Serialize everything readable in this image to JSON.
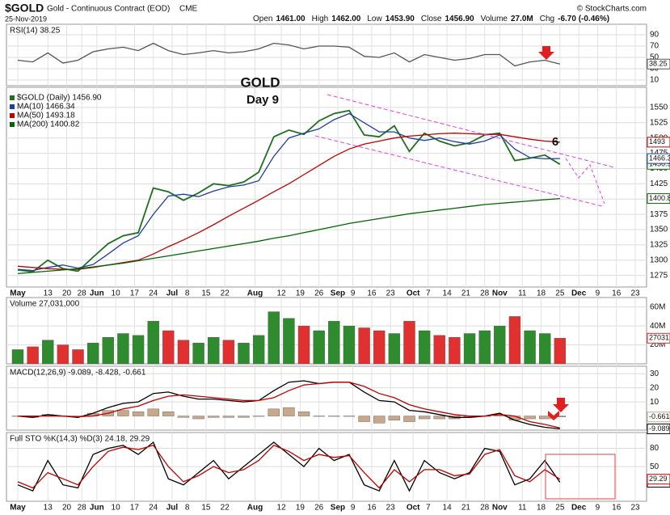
{
  "header": {
    "symbol": "$GOLD",
    "name": "Gold - Continuous Contract (EOD)",
    "exchange": "CME",
    "date": "25-Nov-2019",
    "source": "© StockCharts.com",
    "quote": [
      {
        "label": "Open",
        "value": "1461.00"
      },
      {
        "label": "High",
        "value": "1462.00"
      },
      {
        "label": "Low",
        "value": "1453.90"
      },
      {
        "label": "Close",
        "value": "1456.90"
      },
      {
        "label": "Volume",
        "value": "27.0M"
      },
      {
        "label": "Chg",
        "value": "-6.70 (-0.46%)"
      }
    ]
  },
  "chart_data": [
    {
      "type": "line",
      "legend": "RSI(14) 38.25",
      "xlim": [
        -3,
        167
      ],
      "ylim": [
        0,
        108.6
      ],
      "yticks": [
        10,
        30,
        50,
        70,
        90
      ],
      "grid": true,
      "x": [
        0,
        4,
        8,
        12,
        16,
        20,
        24,
        28,
        32,
        36,
        40,
        44,
        48,
        52,
        56,
        60,
        64,
        68,
        72,
        76,
        80,
        84,
        88,
        92,
        96,
        100,
        104,
        108,
        112,
        116,
        120,
        124,
        128,
        132,
        136,
        140,
        144
      ],
      "series": [
        {
          "color": "#555555",
          "last_label": "38.25",
          "values": [
            45,
            42,
            58,
            40,
            45,
            60,
            65,
            68,
            62,
            75,
            62,
            55,
            58,
            62,
            58,
            60,
            65,
            75,
            72,
            65,
            70,
            70,
            68,
            52,
            50,
            58,
            42,
            55,
            50,
            45,
            48,
            55,
            55,
            35,
            42,
            45,
            38.25
          ]
        }
      ]
    },
    {
      "type": "line",
      "xlim": [
        -3,
        167
      ],
      "ylim": [
        1256,
        1583
      ],
      "yticks": [
        1275,
        1300,
        1325,
        1350,
        1375,
        1400,
        1425,
        1450,
        1475,
        1500,
        1525,
        1550
      ],
      "grid": true,
      "xticks": [
        {
          "value": 0,
          "label": "May"
        },
        {
          "value": 8,
          "label": "13"
        },
        {
          "value": 13,
          "label": "20"
        },
        {
          "value": 17,
          "label": "28"
        },
        {
          "value": 21,
          "label": "Jun"
        },
        {
          "value": 26,
          "label": "10"
        },
        {
          "value": 31,
          "label": "17"
        },
        {
          "value": 36,
          "label": "24"
        },
        {
          "value": 41,
          "label": "Jul"
        },
        {
          "value": 45,
          "label": "8"
        },
        {
          "value": 50,
          "label": "15"
        },
        {
          "value": 55,
          "label": "22"
        },
        {
          "value": 63,
          "label": "Aug"
        },
        {
          "value": 70,
          "label": "12"
        },
        {
          "value": 75,
          "label": "19"
        },
        {
          "value": 80,
          "label": "26"
        },
        {
          "value": 85,
          "label": "Sep"
        },
        {
          "value": 89,
          "label": "9"
        },
        {
          "value": 94,
          "label": "16"
        },
        {
          "value": 99,
          "label": "23"
        },
        {
          "value": 105,
          "label": "Oct"
        },
        {
          "value": 109,
          "label": "7"
        },
        {
          "value": 114,
          "label": "14"
        },
        {
          "value": 119,
          "label": "21"
        },
        {
          "value": 124,
          "label": "28"
        },
        {
          "value": 128,
          "label": "Nov"
        },
        {
          "value": 134,
          "label": "11"
        },
        {
          "value": 139,
          "label": "18"
        },
        {
          "value": 144,
          "label": "25"
        },
        {
          "value": 149,
          "label": "Dec"
        },
        {
          "value": 154,
          "label": "9"
        },
        {
          "value": 159,
          "label": "16"
        },
        {
          "value": 164,
          "label": "23"
        }
      ],
      "x": [
        0,
        4,
        8,
        12,
        16,
        20,
        24,
        28,
        32,
        36,
        40,
        44,
        48,
        52,
        56,
        60,
        64,
        68,
        72,
        76,
        80,
        84,
        88,
        92,
        96,
        100,
        104,
        108,
        112,
        116,
        120,
        124,
        128,
        132,
        136,
        140,
        144
      ],
      "annotations": [
        {
          "text": "GOLD",
          "color": "#9b30c8"
        },
        {
          "text": "Day 9",
          "color": "#2040c0"
        },
        {
          "text": "6",
          "color": "#2040c0"
        }
      ],
      "series": [
        {
          "name": "$GOLD (Daily) 1456.90",
          "color": "#1f6f1f",
          "last_label": "1456.9",
          "values": [
            1284,
            1281,
            1300,
            1286,
            1282,
            1305,
            1327,
            1340,
            1345,
            1418,
            1412,
            1398,
            1410,
            1425,
            1422,
            1428,
            1444,
            1502,
            1513,
            1506,
            1528,
            1540,
            1545,
            1505,
            1502,
            1520,
            1478,
            1508,
            1495,
            1487,
            1492,
            1505,
            1508,
            1463,
            1467,
            1472,
            1456.9
          ]
        },
        {
          "name": "MA(10) 1466.34",
          "color": "#1f3fa0",
          "last_label": "1466.3",
          "values": [
            1285,
            1283,
            1288,
            1292,
            1287,
            1293,
            1310,
            1328,
            1340,
            1375,
            1405,
            1408,
            1404,
            1413,
            1420,
            1423,
            1430,
            1470,
            1500,
            1508,
            1515,
            1530,
            1540,
            1525,
            1510,
            1510,
            1500,
            1496,
            1500,
            1494,
            1490,
            1495,
            1505,
            1482,
            1468,
            1466,
            1466.34
          ]
        },
        {
          "name": "MA(50) 1493.18",
          "color": "#c00000",
          "last_label": "1493",
          "values": [
            1290,
            1288,
            1286,
            1285,
            1285,
            1288,
            1292,
            1296,
            1300,
            1310,
            1322,
            1333,
            1345,
            1358,
            1372,
            1385,
            1398,
            1412,
            1425,
            1440,
            1455,
            1470,
            1482,
            1490,
            1495,
            1500,
            1503,
            1505,
            1507,
            1508,
            1507,
            1506,
            1506,
            1502,
            1498,
            1495,
            1493.18
          ]
        },
        {
          "name": "MA(200) 1400.82",
          "color": "#006400",
          "last_label": "1400.8",
          "values": [
            1278,
            1280,
            1282,
            1284,
            1286,
            1289,
            1292,
            1295,
            1299,
            1303,
            1307,
            1311,
            1315,
            1319,
            1323,
            1327,
            1331,
            1336,
            1340,
            1345,
            1350,
            1355,
            1360,
            1364,
            1368,
            1372,
            1376,
            1379,
            1382,
            1385,
            1388,
            1391,
            1393,
            1395,
            1397,
            1399,
            1400.82
          ]
        }
      ]
    },
    {
      "type": "bar",
      "legend": "Volume 27,031,000",
      "xlim": [
        -3,
        167
      ],
      "ylim": [
        0,
        70000000
      ],
      "yticks": [
        {
          "value": 20000000,
          "label": "20M"
        },
        {
          "value": 40000000,
          "label": "40M"
        },
        {
          "value": 60000000,
          "label": "60M"
        }
      ],
      "grid": true,
      "x": [
        0,
        4,
        8,
        12,
        16,
        20,
        24,
        28,
        32,
        36,
        40,
        44,
        48,
        52,
        56,
        60,
        64,
        68,
        72,
        76,
        80,
        84,
        88,
        92,
        96,
        100,
        104,
        108,
        112,
        116,
        120,
        124,
        128,
        132,
        136,
        140,
        144
      ],
      "series": [
        {
          "last_label": "27031",
          "color": "#e03030",
          "colors": [
            "#2e8b2e",
            "#e03030",
            "#2e8b2e",
            "#e03030",
            "#e03030",
            "#2e8b2e",
            "#2e8b2e",
            "#2e8b2e",
            "#2e8b2e",
            "#2e8b2e",
            "#e03030",
            "#e03030",
            "#2e8b2e",
            "#2e8b2e",
            "#e03030",
            "#2e8b2e",
            "#2e8b2e",
            "#2e8b2e",
            "#2e8b2e",
            "#e03030",
            "#2e8b2e",
            "#2e8b2e",
            "#2e8b2e",
            "#e03030",
            "#e03030",
            "#2e8b2e",
            "#e03030",
            "#2e8b2e",
            "#e03030",
            "#e03030",
            "#2e8b2e",
            "#2e8b2e",
            "#2e8b2e",
            "#e03030",
            "#2e8b2e",
            "#2e8b2e",
            "#e03030"
          ],
          "values": [
            15000000,
            18000000,
            25000000,
            20000000,
            15000000,
            22000000,
            28000000,
            32000000,
            30000000,
            45000000,
            35000000,
            25000000,
            22000000,
            28000000,
            25000000,
            22000000,
            30000000,
            55000000,
            48000000,
            40000000,
            35000000,
            45000000,
            40000000,
            38000000,
            35000000,
            32000000,
            45000000,
            35000000,
            30000000,
            28000000,
            32000000,
            35000000,
            40000000,
            50000000,
            35000000,
            32000000,
            27031000
          ]
        }
      ]
    },
    {
      "type": "line",
      "legend": "MACD(12,26,9) -9.089, -8.428, -0.661",
      "xlim": [
        -3,
        167
      ],
      "ylim": [
        -10,
        35.3
      ],
      "yticks": [
        10,
        20,
        30
      ],
      "grid": true,
      "x": [
        0,
        4,
        8,
        12,
        16,
        20,
        24,
        28,
        32,
        36,
        40,
        44,
        48,
        52,
        56,
        60,
        64,
        68,
        72,
        76,
        80,
        84,
        88,
        92,
        96,
        100,
        104,
        108,
        112,
        116,
        120,
        124,
        128,
        132,
        136,
        140,
        144
      ],
      "series": [
        {
          "kind": "bar",
          "color": "#c8a888",
          "last_label": "-0.661",
          "values": [
            0,
            -1,
            1,
            0,
            -0.5,
            2,
            4,
            4,
            3,
            5,
            3,
            -1,
            -2,
            -1,
            -1,
            -1,
            0,
            5,
            6,
            3,
            0,
            0,
            0,
            -4,
            -5,
            -3,
            -4,
            -2,
            -2,
            -2,
            -1,
            0,
            1,
            -3,
            -2,
            -2,
            -0.661
          ]
        },
        {
          "color": "#000000",
          "last_label": "-9.089",
          "values": [
            0,
            -1,
            1,
            0,
            -1,
            2,
            6,
            9,
            10,
            16,
            17,
            14,
            12,
            12,
            11,
            10,
            11,
            18,
            24,
            25,
            23,
            24,
            24,
            17,
            11,
            10,
            4,
            3,
            1,
            -1,
            -1,
            0,
            2,
            -3,
            -6,
            -8,
            -9.089
          ]
        },
        {
          "color": "#c00000",
          "values": [
            0,
            0,
            0,
            0,
            -0.5,
            0,
            2,
            5,
            7,
            11,
            14,
            15,
            14,
            13,
            12,
            11,
            11,
            13,
            18,
            22,
            23,
            24,
            24,
            21,
            16,
            13,
            8,
            5,
            3,
            1,
            0,
            0,
            1,
            0,
            -4,
            -6,
            -8.428
          ]
        }
      ]
    },
    {
      "type": "line",
      "legend": "Full STO %K(14,3) %D(3) 24.18, 29.29",
      "xlim": [
        -3,
        167
      ],
      "ylim": [
        -7,
        106
      ],
      "yticks": [
        50,
        80
      ],
      "grid": true,
      "xticks": [
        {
          "value": 0,
          "label": "May"
        },
        {
          "value": 8,
          "label": "13"
        },
        {
          "value": 13,
          "label": "20"
        },
        {
          "value": 17,
          "label": "28"
        },
        {
          "value": 21,
          "label": "Jun"
        },
        {
          "value": 26,
          "label": "10"
        },
        {
          "value": 31,
          "label": "17"
        },
        {
          "value": 36,
          "label": "24"
        },
        {
          "value": 41,
          "label": "Jul"
        },
        {
          "value": 45,
          "label": "8"
        },
        {
          "value": 50,
          "label": "15"
        },
        {
          "value": 55,
          "label": "22"
        },
        {
          "value": 63,
          "label": "Aug"
        },
        {
          "value": 70,
          "label": "12"
        },
        {
          "value": 75,
          "label": "19"
        },
        {
          "value": 80,
          "label": "26"
        },
        {
          "value": 85,
          "label": "Sep"
        },
        {
          "value": 89,
          "label": "9"
        },
        {
          "value": 94,
          "label": "16"
        },
        {
          "value": 99,
          "label": "23"
        },
        {
          "value": 105,
          "label": "Oct"
        },
        {
          "value": 109,
          "label": "7"
        },
        {
          "value": 114,
          "label": "14"
        },
        {
          "value": 119,
          "label": "21"
        },
        {
          "value": 124,
          "label": "28"
        },
        {
          "value": 128,
          "label": "Nov"
        },
        {
          "value": 134,
          "label": "11"
        },
        {
          "value": 139,
          "label": "18"
        },
        {
          "value": 144,
          "label": "25"
        },
        {
          "value": 149,
          "label": "Dec"
        },
        {
          "value": 154,
          "label": "9"
        },
        {
          "value": 159,
          "label": "16"
        },
        {
          "value": 164,
          "label": "23"
        }
      ],
      "x": [
        0,
        4,
        8,
        12,
        16,
        20,
        24,
        28,
        32,
        36,
        40,
        44,
        48,
        52,
        56,
        60,
        64,
        68,
        72,
        76,
        80,
        84,
        88,
        92,
        96,
        100,
        104,
        108,
        112,
        116,
        120,
        124,
        128,
        132,
        136,
        140,
        144
      ],
      "series": [
        {
          "color": "#000000",
          "last_label": "24.18",
          "values": [
            20,
            10,
            60,
            20,
            15,
            70,
            80,
            85,
            70,
            90,
            30,
            20,
            40,
            60,
            30,
            50,
            70,
            90,
            70,
            50,
            80,
            60,
            70,
            20,
            10,
            60,
            10,
            60,
            40,
            30,
            40,
            80,
            75,
            20,
            30,
            60,
            24.18
          ]
        },
        {
          "color": "#c00000",
          "last_label": "29.29",
          "values": [
            25,
            15,
            40,
            30,
            20,
            50,
            75,
            82,
            78,
            85,
            50,
            25,
            35,
            50,
            40,
            45,
            60,
            85,
            75,
            60,
            70,
            65,
            68,
            40,
            15,
            45,
            25,
            45,
            45,
            35,
            38,
            70,
            78,
            35,
            25,
            45,
            29.29
          ]
        }
      ]
    }
  ]
}
